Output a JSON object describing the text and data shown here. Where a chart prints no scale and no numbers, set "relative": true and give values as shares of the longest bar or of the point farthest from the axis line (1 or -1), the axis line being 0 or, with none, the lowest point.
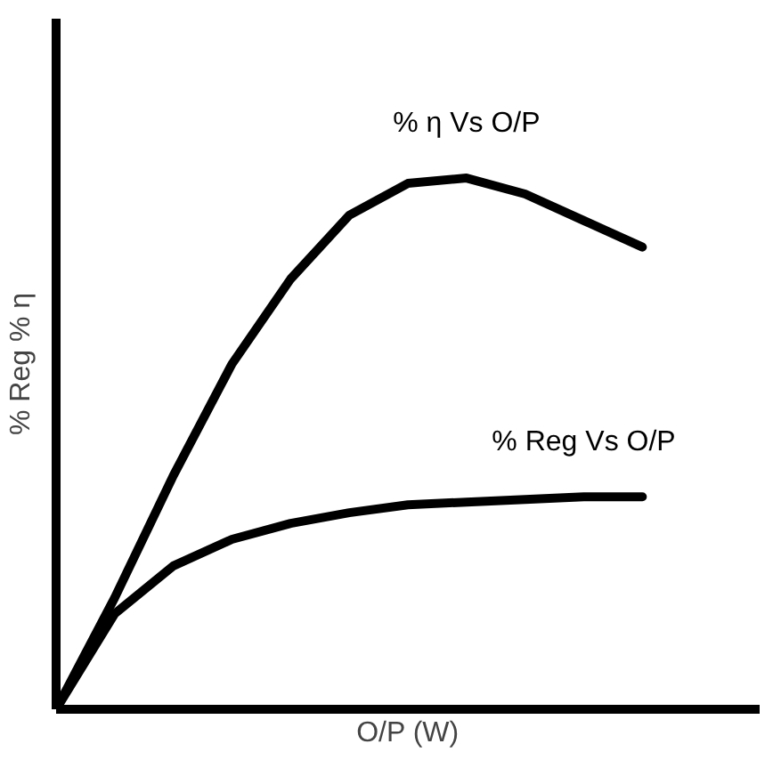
{
  "chart_data": {
    "type": "line",
    "relative": true,
    "xlabel": "O/P (W)",
    "ylabel": "% Reg % η",
    "categories": [
      null,
      null,
      null,
      null,
      null,
      null,
      null,
      null,
      null,
      null,
      null
    ],
    "series": [
      {
        "name": "% η Vs O/P",
        "color": "#000000",
        "values": [
          0,
          0.21,
          0.44,
          0.65,
          0.81,
          0.93,
          0.99,
          1.0,
          0.97,
          0.92,
          0.87
        ]
      },
      {
        "name": "% Reg Vs O/P",
        "color": "#000000",
        "values": [
          0,
          0.18,
          0.27,
          0.32,
          0.35,
          0.37,
          0.385,
          0.39,
          0.395,
          0.4,
          0.4
        ]
      }
    ],
    "grid": false,
    "marker": "none",
    "line_style": "solid"
  }
}
